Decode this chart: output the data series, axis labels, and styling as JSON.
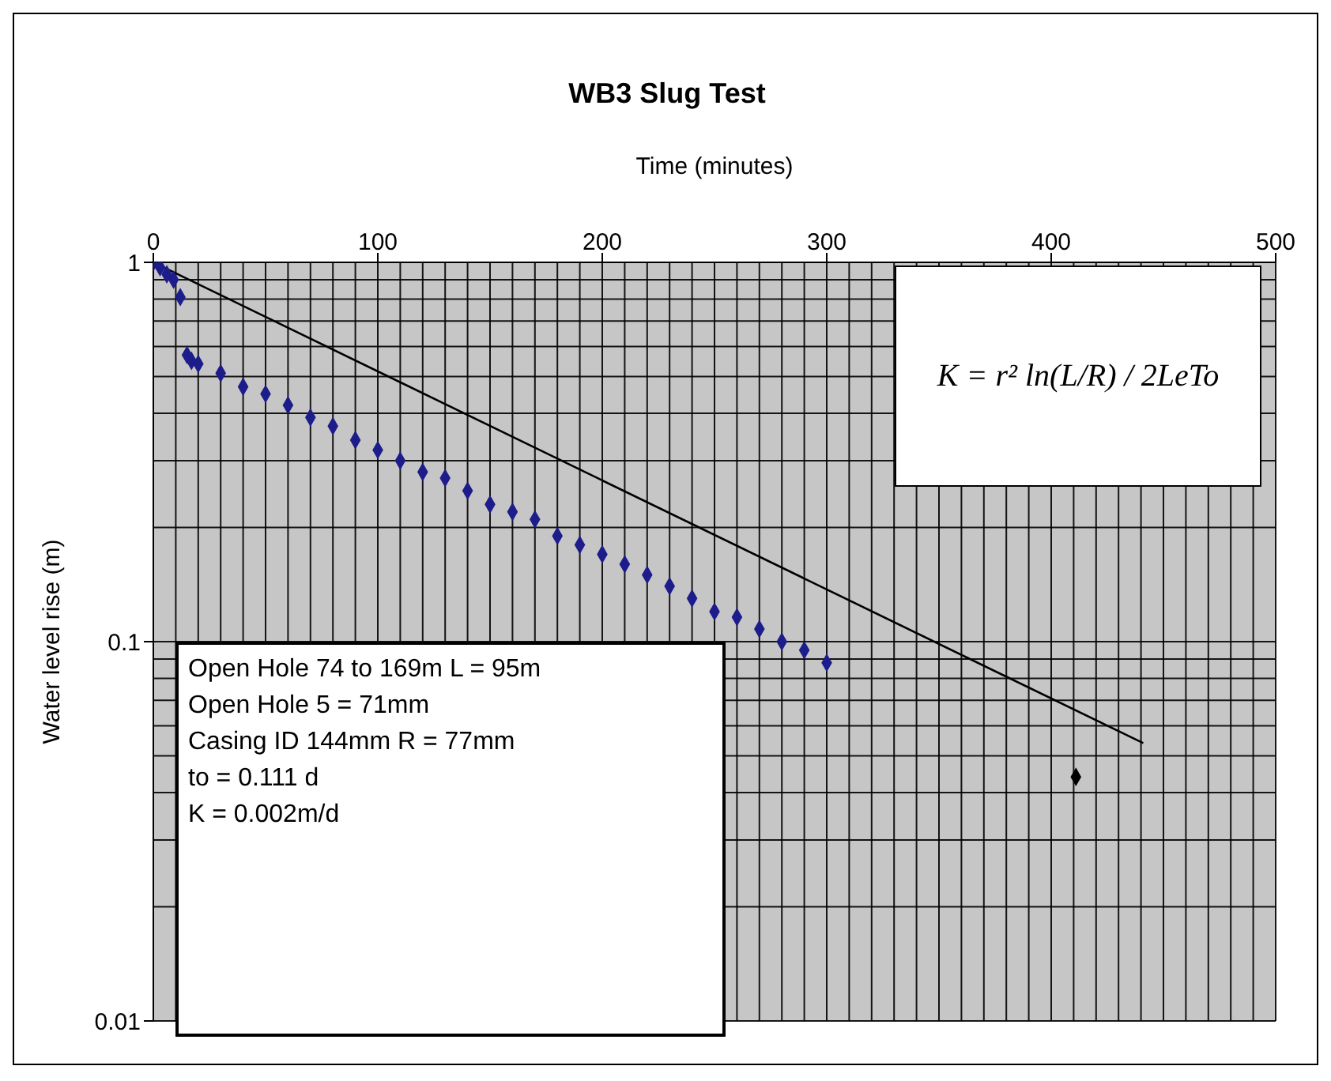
{
  "chart_data": {
    "type": "scatter",
    "title": "WB3 Slug Test",
    "xlabel": "Time (minutes)",
    "ylabel": "Water level rise (m)",
    "xlim": [
      0,
      500
    ],
    "xticks": [
      0,
      100,
      200,
      300,
      400,
      500
    ],
    "ylim": [
      0.01,
      1
    ],
    "yticks": [
      0.01,
      0.1,
      1
    ],
    "log": "y",
    "grid": true,
    "marker": "diamond",
    "series": [
      {
        "color": "#1c1c8a",
        "x": [
          0,
          3,
          6,
          9,
          12,
          15,
          17,
          20,
          30,
          40,
          50,
          60,
          70,
          80,
          90,
          100,
          110,
          120,
          130,
          140,
          150,
          160,
          170,
          180,
          190,
          200,
          210,
          220,
          230,
          240,
          250,
          260,
          270,
          280,
          290,
          300
        ],
        "values": [
          1,
          0.97,
          0.93,
          0.9,
          0.81,
          0.57,
          0.55,
          0.54,
          0.51,
          0.47,
          0.45,
          0.42,
          0.39,
          0.37,
          0.34,
          0.32,
          0.3,
          0.28,
          0.27,
          0.25,
          0.23,
          0.22,
          0.21,
          0.19,
          0.18,
          0.17,
          0.16,
          0.15,
          0.14,
          0.13,
          0.12,
          0.116,
          0.108,
          0.1,
          0.095,
          0.088
        ]
      },
      {
        "type": "line",
        "color": "#000000",
        "marker": "none",
        "x": [
          0,
          441
        ],
        "values": [
          1,
          0.054
        ]
      },
      {
        "color": "#000000",
        "x": [
          411
        ],
        "values": [
          0.044
        ]
      }
    ],
    "annotations": [
      "K = r² ln(L/R) / 2LeTo",
      "Open Hole 74 to 169m L = 95m",
      "Open Hole 5 = 71mm",
      "Casing ID 144mm R = 77mm",
      "to = 0.111 d",
      "K = 0.002m/d"
    ]
  }
}
